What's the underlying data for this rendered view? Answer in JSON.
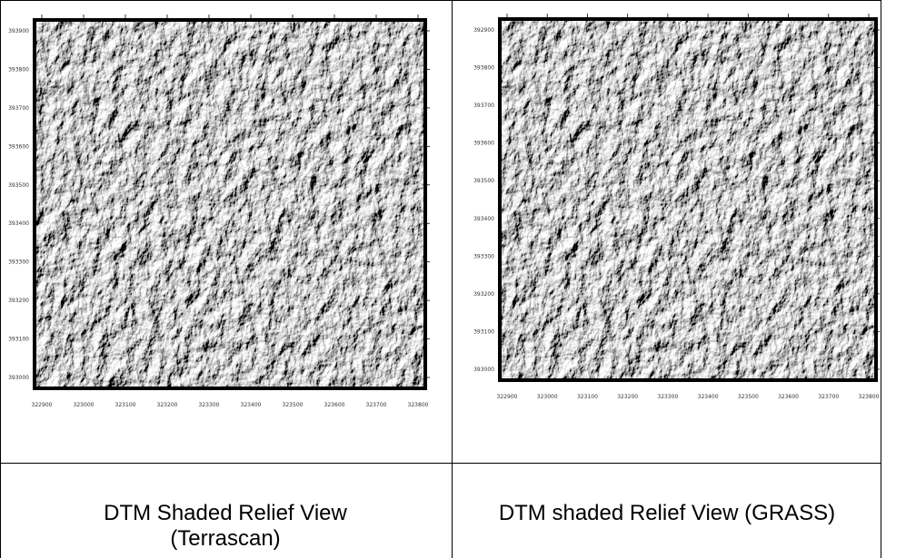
{
  "table": {
    "rows": [
      [
        {
          "map": {
            "xticks": [
              "322900",
              "323000",
              "323100",
              "323200",
              "323300",
              "323400",
              "323500",
              "323600",
              "323700",
              "323800"
            ],
            "yticks": [
              "393900",
              "393800",
              "393700",
              "393600",
              "393500",
              "393400",
              "393300",
              "393200",
              "393100",
              "393000"
            ]
          }
        },
        {
          "map": {
            "xticks": [
              "322900",
              "323000",
              "323100",
              "323200",
              "323300",
              "323400",
              "323500",
              "323600",
              "323700",
              "323800"
            ],
            "yticks": [
              "392900",
              "393800",
              "393700",
              "393600",
              "393500",
              "393400",
              "393300",
              "393200",
              "393100",
              "393000"
            ]
          }
        }
      ],
      [
        "DTM Shaded Relief View (Terrascan)",
        "DTM shaded Relief View (GRASS)"
      ]
    ]
  }
}
